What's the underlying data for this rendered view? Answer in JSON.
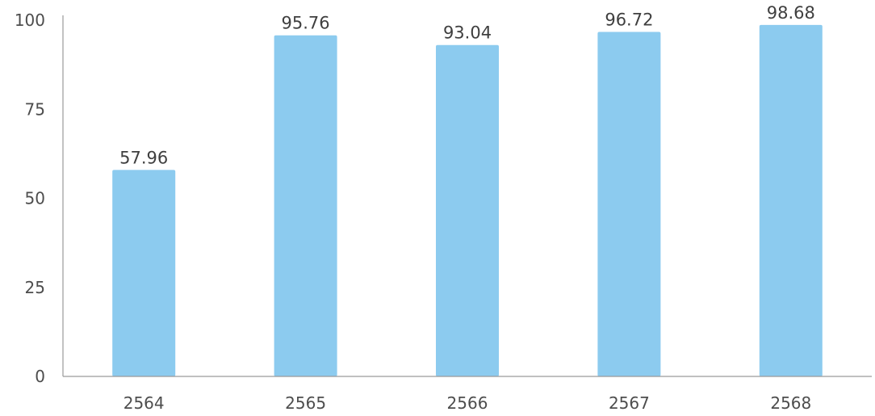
{
  "chart_data": {
    "type": "bar",
    "categories": [
      "2564",
      "2565",
      "2566",
      "2567",
      "2568"
    ],
    "values": [
      57.96,
      95.76,
      93.04,
      96.72,
      98.68
    ],
    "value_labels": [
      "57.96",
      "95.76",
      "93.04",
      "96.72",
      "98.68"
    ],
    "title": "",
    "xlabel": "",
    "ylabel": "",
    "ylim": [
      0,
      100
    ],
    "yticks": [
      0,
      25,
      50,
      75,
      100
    ],
    "ytick_labels": [
      "0",
      "25",
      "50",
      "75",
      "100"
    ],
    "grid": false,
    "legend": "none",
    "bar_color": "#8ccbef",
    "axis_color": "#9a9a9a"
  }
}
